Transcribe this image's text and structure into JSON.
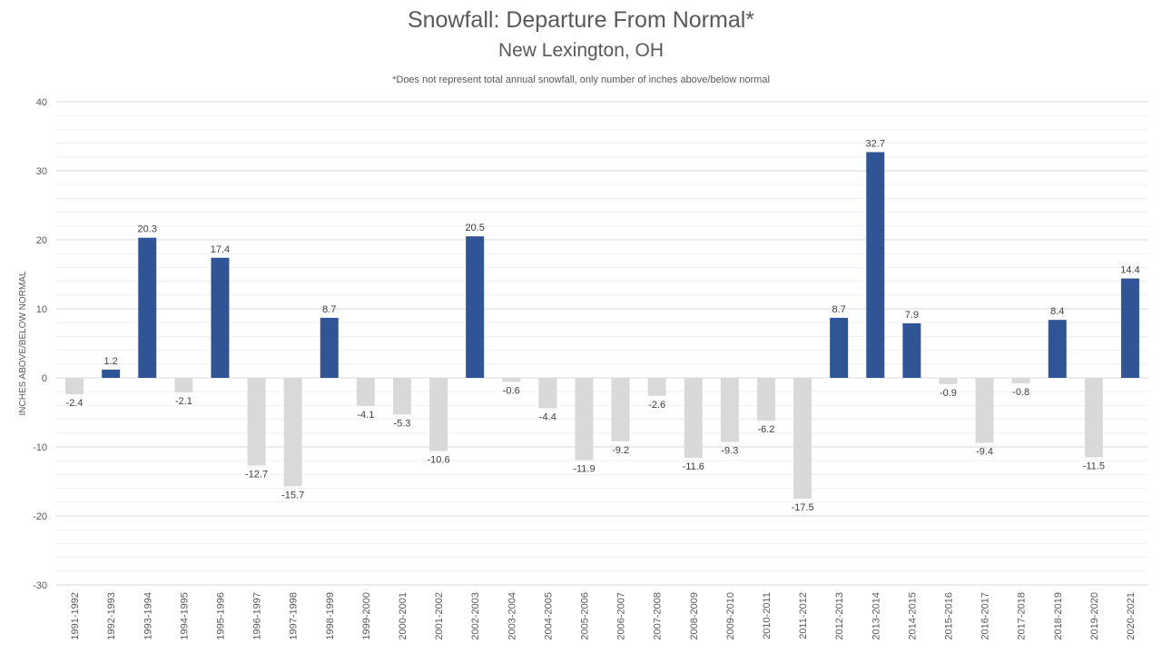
{
  "chart_data": {
    "type": "bar",
    "title": "Snowfall: Departure From Normal*",
    "subtitle": "New Lexington, OH",
    "note": "*Does not represent  total annual snowfall, only number of inches above/below normal",
    "ylabel": "INCHES ABOVE/BELOW NORMAL",
    "xlabel": "",
    "ylim": [
      -30,
      40
    ],
    "yticks": [
      -30,
      -20,
      -10,
      0,
      10,
      20,
      30,
      40
    ],
    "grid": true,
    "legend": "none",
    "colors": {
      "positive": "#2F5597",
      "negative": "#D9D9D9"
    },
    "categories": [
      "1991-1992",
      "1992-1993",
      "1993-1994",
      "1994-1995",
      "1995-1996",
      "1996-1997",
      "1997-1998",
      "1998-1999",
      "1999-2000",
      "2000-2001",
      "2001-2002",
      "2002-2003",
      "2003-2004",
      "2004-2005",
      "2005-2006",
      "2006-2007",
      "2007-2008",
      "2008-2009",
      "2009-2010",
      "2010-2011",
      "2011-2012",
      "2012-2013",
      "2013-2014",
      "2014-2015",
      "2015-2016",
      "2016-2017",
      "2017-2018",
      "2018-2019",
      "2019-2020",
      "2020-2021"
    ],
    "values": [
      -2.4,
      1.2,
      20.3,
      -2.1,
      17.4,
      -12.7,
      -15.7,
      8.7,
      -4.1,
      -5.3,
      -10.6,
      20.5,
      -0.6,
      -4.4,
      -11.9,
      -9.2,
      -2.6,
      -11.6,
      -9.3,
      -6.2,
      -17.5,
      8.7,
      32.7,
      7.9,
      -0.9,
      -9.4,
      -0.8,
      8.4,
      -11.5,
      14.4
    ]
  }
}
